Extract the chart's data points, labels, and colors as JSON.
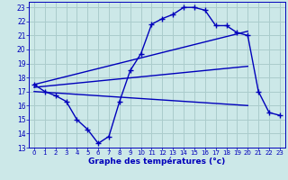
{
  "background_color": "#cce8e8",
  "grid_color": "#aacccc",
  "line_color": "#0000bb",
  "xlabel": "Graphe des températures (°c)",
  "xlim": [
    -0.5,
    23.5
  ],
  "ylim": [
    13,
    23.4
  ],
  "yticks": [
    13,
    14,
    15,
    16,
    17,
    18,
    19,
    20,
    21,
    22,
    23
  ],
  "xticks": [
    0,
    1,
    2,
    3,
    4,
    5,
    6,
    7,
    8,
    9,
    10,
    11,
    12,
    13,
    14,
    15,
    16,
    17,
    18,
    19,
    20,
    21,
    22,
    23
  ],
  "main_line": {
    "x": [
      0,
      1,
      2,
      3,
      4,
      5,
      6,
      7,
      8,
      9,
      10,
      11,
      12,
      13,
      14,
      15,
      16,
      17,
      18,
      19,
      20,
      21,
      22,
      23
    ],
    "y": [
      17.5,
      17.0,
      16.7,
      16.3,
      15.0,
      14.3,
      13.3,
      13.8,
      16.3,
      18.5,
      19.7,
      21.8,
      22.2,
      22.5,
      23.0,
      23.0,
      22.8,
      21.7,
      21.7,
      21.2,
      21.0,
      17.0,
      15.5,
      15.3
    ]
  },
  "reg_lines": [
    {
      "x": [
        0,
        20
      ],
      "y": [
        17.5,
        21.3
      ]
    },
    {
      "x": [
        0,
        20
      ],
      "y": [
        17.3,
        18.8
      ]
    },
    {
      "x": [
        0,
        20
      ],
      "y": [
        17.0,
        16.0
      ]
    }
  ]
}
